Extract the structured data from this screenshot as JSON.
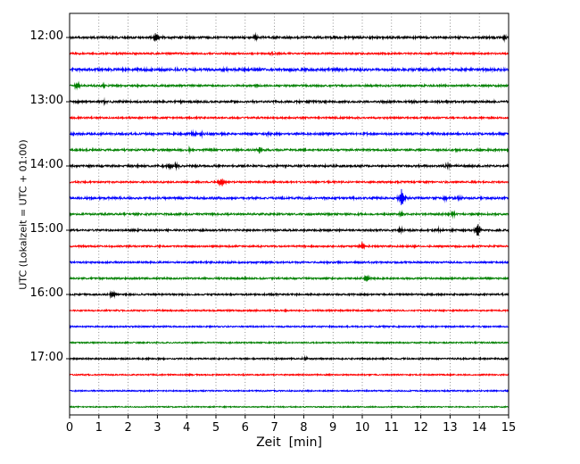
{
  "figure": {
    "xlabel": "Zeit  [min]",
    "ylabel": "UTC (Lokalzeit = UTC + 01:00)"
  },
  "chart_data": {
    "type": "line",
    "subtype": "seismogram-helicorder",
    "title": "",
    "xlabel": "Zeit  [min]",
    "ylabel": "UTC (Lokalzeit = UTC + 01:00)",
    "x_range": [
      0,
      15
    ],
    "x_ticks": [
      0,
      1,
      2,
      3,
      4,
      5,
      6,
      7,
      8,
      9,
      10,
      11,
      12,
      13,
      14,
      15
    ],
    "minutes_per_row": 15,
    "grid": true,
    "grid_style": "dotted",
    "colors_cycle": [
      "#000000",
      "#ff0000",
      "#0000ff",
      "#008000"
    ],
    "rows": [
      {
        "time_utc": "12:00",
        "tick_label": "12:00",
        "color": "#000000",
        "noise": 1.1,
        "events": [
          {
            "x": 2.95,
            "a": 6
          },
          {
            "x": 6.35,
            "a": 4
          },
          {
            "x": 14.85,
            "a": 1.5
          }
        ]
      },
      {
        "time_utc": "12:15",
        "tick_label": null,
        "color": "#ff0000",
        "noise": 0.9,
        "events": [
          {
            "x": 6.9,
            "a": 1.2
          }
        ]
      },
      {
        "time_utc": "12:30",
        "tick_label": null,
        "color": "#0000ff",
        "noise": 1.3,
        "events": []
      },
      {
        "time_utc": "12:45",
        "tick_label": null,
        "color": "#008000",
        "noise": 1.0,
        "events": [
          {
            "x": 0.25,
            "a": 4.5
          },
          {
            "x": 1.15,
            "a": 1.5
          }
        ]
      },
      {
        "time_utc": "13:00",
        "tick_label": "13:00",
        "color": "#000000",
        "noise": 1.1,
        "events": [
          {
            "x": 0.3,
            "a": 2
          },
          {
            "x": 1.2,
            "a": 1.5
          }
        ]
      },
      {
        "time_utc": "13:15",
        "tick_label": null,
        "color": "#ff0000",
        "noise": 0.9,
        "events": []
      },
      {
        "time_utc": "13:30",
        "tick_label": null,
        "color": "#0000ff",
        "noise": 1.1,
        "events": [
          {
            "x": 4.2,
            "a": 2.5
          },
          {
            "x": 4.5,
            "a": 2
          },
          {
            "x": 6.8,
            "a": 1.5
          }
        ]
      },
      {
        "time_utc": "13:45",
        "tick_label": null,
        "color": "#008000",
        "noise": 1.0,
        "events": [
          {
            "x": 4.1,
            "a": 1.8
          },
          {
            "x": 6.5,
            "a": 3.5
          },
          {
            "x": 13.2,
            "a": 1.2
          }
        ]
      },
      {
        "time_utc": "14:00",
        "tick_label": "14:00",
        "color": "#000000",
        "noise": 1.1,
        "events": [
          {
            "x": 3.4,
            "a": 2.5
          },
          {
            "x": 3.65,
            "a": 2.5
          },
          {
            "x": 12.9,
            "a": 2
          }
        ]
      },
      {
        "time_utc": "14:15",
        "tick_label": null,
        "color": "#ff0000",
        "noise": 0.9,
        "events": [
          {
            "x": 5.2,
            "a": 5.5
          }
        ]
      },
      {
        "time_utc": "14:30",
        "tick_label": null,
        "color": "#0000ff",
        "noise": 1.1,
        "events": [
          {
            "x": 11.35,
            "a": 13
          },
          {
            "x": 12.85,
            "a": 2.5
          },
          {
            "x": 13.3,
            "a": 1.5
          }
        ]
      },
      {
        "time_utc": "14:45",
        "tick_label": null,
        "color": "#008000",
        "noise": 1.0,
        "events": [
          {
            "x": 9.9,
            "a": 1.2
          },
          {
            "x": 11.35,
            "a": 2.5
          },
          {
            "x": 13.1,
            "a": 2.5
          }
        ]
      },
      {
        "time_utc": "15:00",
        "tick_label": "15:00",
        "color": "#000000",
        "noise": 1.0,
        "events": [
          {
            "x": 11.3,
            "a": 3.5
          },
          {
            "x": 12.6,
            "a": 1.5
          },
          {
            "x": 13.95,
            "a": 9
          }
        ]
      },
      {
        "time_utc": "15:15",
        "tick_label": null,
        "color": "#ff0000",
        "noise": 0.9,
        "events": [
          {
            "x": 10.0,
            "a": 3.5
          },
          {
            "x": 11.8,
            "a": 1.2
          }
        ]
      },
      {
        "time_utc": "15:30",
        "tick_label": null,
        "color": "#0000ff",
        "noise": 0.9,
        "events": []
      },
      {
        "time_utc": "15:45",
        "tick_label": null,
        "color": "#008000",
        "noise": 0.9,
        "events": [
          {
            "x": 10.15,
            "a": 3.5
          }
        ]
      },
      {
        "time_utc": "16:00",
        "tick_label": "16:00",
        "color": "#000000",
        "noise": 0.9,
        "events": [
          {
            "x": 1.45,
            "a": 4.5
          }
        ]
      },
      {
        "time_utc": "16:15",
        "tick_label": null,
        "color": "#ff0000",
        "noise": 0.8,
        "events": []
      },
      {
        "time_utc": "16:30",
        "tick_label": null,
        "color": "#0000ff",
        "noise": 0.8,
        "events": []
      },
      {
        "time_utc": "16:45",
        "tick_label": null,
        "color": "#008000",
        "noise": 0.7,
        "events": []
      },
      {
        "time_utc": "17:00",
        "tick_label": "17:00",
        "color": "#000000",
        "noise": 0.8,
        "events": [
          {
            "x": 8.05,
            "a": 1.8
          }
        ]
      },
      {
        "time_utc": "17:15",
        "tick_label": null,
        "color": "#ff0000",
        "noise": 0.7,
        "events": []
      },
      {
        "time_utc": "17:30",
        "tick_label": null,
        "color": "#0000ff",
        "noise": 0.7,
        "events": []
      },
      {
        "time_utc": "17:45",
        "tick_label": null,
        "color": "#008000",
        "noise": 0.6,
        "events": []
      }
    ]
  }
}
